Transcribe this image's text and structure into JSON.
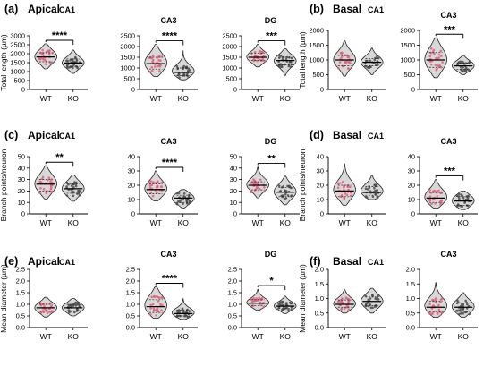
{
  "chart_data": [
    {
      "type": "violin",
      "panel": "(a)",
      "region": "Apical",
      "title": "CA1",
      "ylabel": "Total length (µm)",
      "ylim": [
        0,
        3000
      ],
      "yticks": [
        0,
        500,
        1000,
        1500,
        2000,
        2500,
        3000
      ],
      "categories": [
        "WT",
        "KO"
      ],
      "series": [
        {
          "name": "WT",
          "min": 1150,
          "q1": 1550,
          "median": 1820,
          "q3": 2050,
          "max": 2550
        },
        {
          "name": "KO",
          "min": 900,
          "q1": 1300,
          "median": 1480,
          "q3": 1700,
          "max": 2200
        }
      ],
      "significance": "****"
    },
    {
      "type": "violin",
      "panel": "(a)",
      "region": "Apical",
      "title": "CA3",
      "ylabel": "",
      "ylim": [
        0,
        2500
      ],
      "yticks": [
        0,
        500,
        1000,
        1500,
        2000,
        2500
      ],
      "categories": [
        "WT",
        "KO"
      ],
      "series": [
        {
          "name": "WT",
          "min": 600,
          "q1": 950,
          "median": 1200,
          "q3": 1500,
          "max": 2100
        },
        {
          "name": "KO",
          "min": 450,
          "q1": 650,
          "median": 800,
          "q3": 1000,
          "max": 1800
        }
      ],
      "significance": "****"
    },
    {
      "type": "violin",
      "panel": "(a)",
      "region": "Apical",
      "title": "DG",
      "ylabel": "",
      "ylim": [
        0,
        2500
      ],
      "yticks": [
        0,
        500,
        1000,
        1500,
        2000,
        2500
      ],
      "categories": [
        "WT",
        "KO"
      ],
      "series": [
        {
          "name": "WT",
          "min": 1050,
          "q1": 1350,
          "median": 1500,
          "q3": 1680,
          "max": 2100
        },
        {
          "name": "KO",
          "min": 650,
          "q1": 1150,
          "median": 1350,
          "q3": 1500,
          "max": 1900
        }
      ],
      "significance": "***"
    },
    {
      "type": "violin",
      "panel": "(b)",
      "region": "Basal",
      "title": "CA1",
      "ylabel": "Total length (µm)",
      "ylim": [
        0,
        2000
      ],
      "yticks": [
        0,
        500,
        1000,
        1500,
        2000
      ],
      "categories": [
        "WT",
        "KO"
      ],
      "series": [
        {
          "name": "WT",
          "min": 450,
          "q1": 800,
          "median": 1000,
          "q3": 1150,
          "max": 1650
        },
        {
          "name": "KO",
          "min": 500,
          "q1": 800,
          "median": 920,
          "q3": 1050,
          "max": 1400
        }
      ],
      "significance": ""
    },
    {
      "type": "violin",
      "panel": "(b)",
      "region": "Basal",
      "title": "CA3",
      "ylabel": "",
      "ylim": [
        0,
        2000
      ],
      "yticks": [
        0,
        500,
        1000,
        1500,
        2000
      ],
      "categories": [
        "WT",
        "KO"
      ],
      "series": [
        {
          "name": "WT",
          "min": 400,
          "q1": 750,
          "median": 1000,
          "q3": 1250,
          "max": 1750
        },
        {
          "name": "KO",
          "min": 500,
          "q1": 680,
          "median": 800,
          "q3": 900,
          "max": 1150
        }
      ],
      "significance": "***"
    },
    {
      "type": "violin",
      "panel": "(c)",
      "region": "Apical",
      "title": "CA1",
      "ylabel": "Branch points/neuron",
      "ylim": [
        0,
        50
      ],
      "yticks": [
        0,
        10,
        20,
        30,
        40,
        50
      ],
      "categories": [
        "WT",
        "KO"
      ],
      "series": [
        {
          "name": "WT",
          "min": 13,
          "q1": 20,
          "median": 26,
          "q3": 30,
          "max": 42
        },
        {
          "name": "KO",
          "min": 11,
          "q1": 18,
          "median": 22,
          "q3": 26,
          "max": 34
        }
      ],
      "significance": "**"
    },
    {
      "type": "violin",
      "panel": "(c)",
      "region": "Apical",
      "title": "CA3",
      "ylabel": "",
      "ylim": [
        0,
        40
      ],
      "yticks": [
        0,
        10,
        20,
        30,
        40
      ],
      "categories": [
        "WT",
        "KO"
      ],
      "series": [
        {
          "name": "WT",
          "min": 9,
          "q1": 14,
          "median": 17,
          "q3": 21,
          "max": 30
        },
        {
          "name": "KO",
          "min": 4,
          "q1": 8,
          "median": 11,
          "q3": 13,
          "max": 17
        }
      ],
      "significance": "****"
    },
    {
      "type": "violin",
      "panel": "(c)",
      "region": "Apical",
      "title": "DG",
      "ylabel": "",
      "ylim": [
        0,
        50
      ],
      "yticks": [
        0,
        10,
        20,
        30,
        40,
        50
      ],
      "categories": [
        "WT",
        "KO"
      ],
      "series": [
        {
          "name": "WT",
          "min": 14,
          "q1": 21,
          "median": 25,
          "q3": 28,
          "max": 41
        },
        {
          "name": "KO",
          "min": 8,
          "q1": 15,
          "median": 19,
          "q3": 23,
          "max": 33
        }
      ],
      "significance": "**"
    },
    {
      "type": "violin",
      "panel": "(d)",
      "region": "Basal",
      "title": "CA1",
      "ylabel": "Branch points/neuron",
      "ylim": [
        0,
        40
      ],
      "yticks": [
        0,
        10,
        20,
        30,
        40
      ],
      "categories": [
        "WT",
        "KO"
      ],
      "series": [
        {
          "name": "WT",
          "min": 6,
          "q1": 12,
          "median": 16,
          "q3": 20,
          "max": 35
        },
        {
          "name": "KO",
          "min": 10,
          "q1": 13,
          "median": 15,
          "q3": 19,
          "max": 27
        }
      ],
      "significance": ""
    },
    {
      "type": "violin",
      "panel": "(d)",
      "region": "Basal",
      "title": "CA3",
      "ylabel": "",
      "ylim": [
        0,
        40
      ],
      "yticks": [
        0,
        10,
        20,
        30,
        40
      ],
      "categories": [
        "WT",
        "KO"
      ],
      "series": [
        {
          "name": "WT",
          "min": 4,
          "q1": 8,
          "median": 11,
          "q3": 15,
          "max": 24
        },
        {
          "name": "KO",
          "min": 3,
          "q1": 6,
          "median": 9,
          "q3": 12,
          "max": 16
        }
      ],
      "significance": "***"
    },
    {
      "type": "violin",
      "panel": "(e)",
      "region": "Apical",
      "title": "CA1",
      "ylabel": "Mean diameter (µm)",
      "ylim": [
        0,
        2.5
      ],
      "yticks": [
        0,
        0.5,
        1.0,
        1.5,
        2.0,
        2.5
      ],
      "categories": [
        "WT",
        "KO"
      ],
      "series": [
        {
          "name": "WT",
          "min": 0.45,
          "q1": 0.7,
          "median": 0.85,
          "q3": 1.0,
          "max": 1.3
        },
        {
          "name": "KO",
          "min": 0.5,
          "q1": 0.72,
          "median": 0.85,
          "q3": 1.0,
          "max": 1.25
        }
      ],
      "significance": ""
    },
    {
      "type": "violin",
      "panel": "(e)",
      "region": "Apical",
      "title": "CA3",
      "ylabel": "",
      "ylim": [
        0,
        2.5
      ],
      "yticks": [
        0,
        0.5,
        1.0,
        1.5,
        2.0,
        2.5
      ],
      "categories": [
        "WT",
        "KO"
      ],
      "series": [
        {
          "name": "WT",
          "min": 0.4,
          "q1": 0.65,
          "median": 0.9,
          "q3": 1.2,
          "max": 1.75
        },
        {
          "name": "KO",
          "min": 0.35,
          "q1": 0.5,
          "median": 0.6,
          "q3": 0.75,
          "max": 1.25
        }
      ],
      "significance": "****"
    },
    {
      "type": "violin",
      "panel": "(e)",
      "region": "Apical",
      "title": "DG",
      "ylabel": "",
      "ylim": [
        0,
        2.5
      ],
      "yticks": [
        0,
        0.5,
        1.0,
        1.5,
        2.0,
        2.5
      ],
      "categories": [
        "WT",
        "KO"
      ],
      "series": [
        {
          "name": "WT",
          "min": 0.75,
          "q1": 0.95,
          "median": 1.05,
          "q3": 1.2,
          "max": 1.65
        },
        {
          "name": "KO",
          "min": 0.6,
          "q1": 0.82,
          "median": 0.92,
          "q3": 1.05,
          "max": 1.35
        }
      ],
      "significance": "*"
    },
    {
      "type": "violin",
      "panel": "(f)",
      "region": "Basal",
      "title": "CA1",
      "ylabel": "Mean diameter (µm)",
      "ylim": [
        0,
        2.0
      ],
      "yticks": [
        0,
        0.5,
        1.0,
        1.5,
        2.0
      ],
      "categories": [
        "WT",
        "KO"
      ],
      "series": [
        {
          "name": "WT",
          "min": 0.5,
          "q1": 0.7,
          "median": 0.8,
          "q3": 0.95,
          "max": 1.3
        },
        {
          "name": "KO",
          "min": 0.5,
          "q1": 0.75,
          "median": 0.9,
          "q3": 1.05,
          "max": 1.35
        }
      ],
      "significance": ""
    },
    {
      "type": "violin",
      "panel": "(f)",
      "region": "Basal",
      "title": "CA3",
      "ylabel": "",
      "ylim": [
        0,
        2.0
      ],
      "yticks": [
        0,
        0.5,
        1.0,
        1.5,
        2.0
      ],
      "categories": [
        "WT",
        "KO"
      ],
      "series": [
        {
          "name": "WT",
          "min": 0.35,
          "q1": 0.55,
          "median": 0.7,
          "q3": 0.9,
          "max": 1.55
        },
        {
          "name": "KO",
          "min": 0.35,
          "q1": 0.55,
          "median": 0.7,
          "q3": 0.85,
          "max": 1.2
        }
      ],
      "significance": ""
    }
  ],
  "colors": {
    "violin_fill": "#d8d8d8",
    "violin_stroke": "#222222",
    "dot_wt": "#e0607a",
    "dot_ko": "#4a4a4a",
    "axis": "#000000"
  }
}
